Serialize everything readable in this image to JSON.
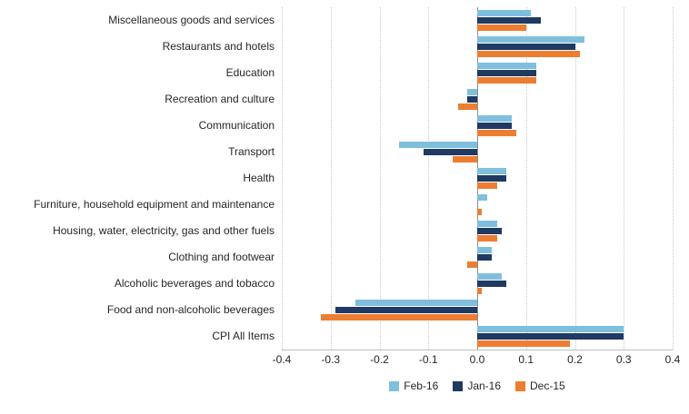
{
  "chart_data": {
    "type": "bar",
    "orientation": "horizontal",
    "title": "",
    "xlabel": "",
    "ylabel": "",
    "xlim": [
      -0.4,
      0.4
    ],
    "xticks": [
      "-0.4",
      "-0.3",
      "-0.2",
      "-0.1",
      "0.0",
      "0.1",
      "0.2",
      "0.3",
      "0.4"
    ],
    "grid": "dotted-vertical",
    "legend_position": "bottom",
    "categories": [
      "Miscellaneous goods and services",
      "Restaurants and hotels",
      "Education",
      "Recreation and culture",
      "Communication",
      "Transport",
      "Health",
      "Furniture, household equipment and maintenance",
      "Housing, water, electricity, gas and other fuels",
      "Clothing and footwear",
      "Alcoholic beverages and tobacco",
      "Food and non-alcoholic beverages",
      "CPI All Items"
    ],
    "series": [
      {
        "name": "Feb-16",
        "color": "#7FBFDD",
        "values": [
          0.11,
          0.22,
          0.12,
          -0.02,
          0.07,
          -0.16,
          0.06,
          0.02,
          0.04,
          0.03,
          0.05,
          -0.25,
          0.3
        ]
      },
      {
        "name": "Jan-16",
        "color": "#1F3A63",
        "values": [
          0.13,
          0.2,
          0.12,
          -0.02,
          0.07,
          -0.11,
          0.06,
          0.0,
          0.05,
          0.03,
          0.06,
          -0.29,
          0.3
        ]
      },
      {
        "name": "Dec-15",
        "color": "#ED7D31",
        "values": [
          0.1,
          0.21,
          0.12,
          -0.04,
          0.08,
          -0.05,
          0.04,
          0.01,
          0.04,
          -0.02,
          0.01,
          -0.32,
          0.19
        ]
      }
    ]
  },
  "colors": {
    "gridline": "#c9c9c9",
    "zero_line": "#8c8c8c",
    "text": "#262626"
  }
}
